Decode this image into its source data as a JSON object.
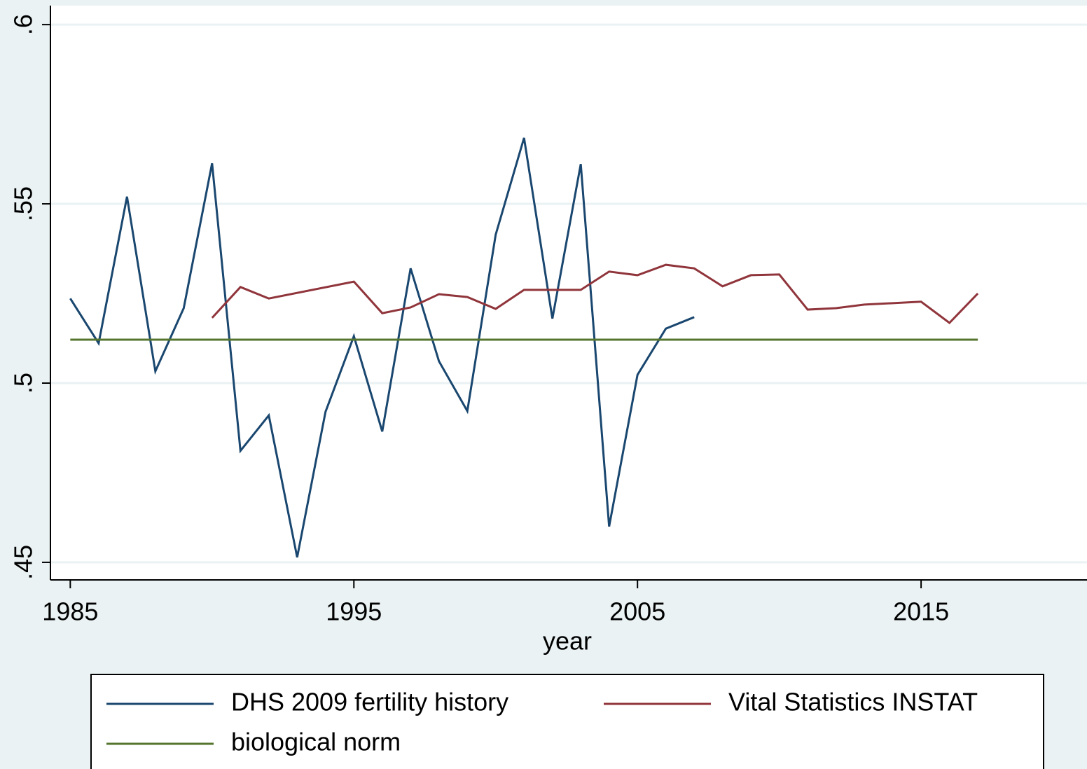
{
  "chart_data": {
    "type": "line",
    "x_label": "year",
    "xlim": [
      1984.3,
      2020.85
    ],
    "xticks": [
      1985,
      1995,
      2005,
      2015
    ],
    "ylim": [
      0.4451,
      0.6053
    ],
    "yticks": [
      {
        "value": 0.45,
        "label": ".45"
      },
      {
        "value": 0.5,
        "label": ".5"
      },
      {
        "value": 0.55,
        "label": ".55"
      },
      {
        "value": 0.6,
        "label": ".6"
      }
    ],
    "grid": true,
    "legend": "bottom",
    "series": [
      {
        "name": "DHS 2009 fertility history",
        "color": "#1a476f",
        "x": [
          1985,
          1986,
          1987,
          1988,
          1989,
          1990,
          1991,
          1992,
          1993,
          1994,
          1995,
          1996,
          1997,
          1998,
          1999,
          2000,
          2001,
          2002,
          2003,
          2004,
          2005,
          2006,
          2007
        ],
        "values": [
          0.5236,
          0.5111,
          0.552,
          0.5033,
          0.5209,
          0.5613,
          0.4811,
          0.491,
          0.4514,
          0.492,
          0.5131,
          0.4865,
          0.532,
          0.5061,
          0.4922,
          0.5414,
          0.5684,
          0.518,
          0.5611,
          0.46,
          0.5023,
          0.5152,
          0.5184
        ]
      },
      {
        "name": "Vital Statistics INSTAT",
        "color": "#90353b",
        "x": [
          1990,
          1991,
          1992,
          1995,
          1996,
          1997,
          1998,
          1999,
          2000,
          2001,
          2002,
          2003,
          2004,
          2005,
          2006,
          2007,
          2008,
          2009,
          2010,
          2011,
          2012,
          2013,
          2014,
          2015,
          2016,
          2017
        ],
        "values": [
          0.5182,
          0.5268,
          0.5236,
          0.5283,
          0.5195,
          0.5211,
          0.5248,
          0.524,
          0.5207,
          0.526,
          0.526,
          0.526,
          0.5311,
          0.5301,
          0.533,
          0.532,
          0.527,
          0.5301,
          0.5303,
          0.5205,
          0.5209,
          0.5219,
          0.5223,
          0.5227,
          0.5168,
          0.525
        ]
      },
      {
        "name": "biological norm",
        "color": "#55752f",
        "x": [
          1985,
          2017
        ],
        "values": [
          0.5121,
          0.5121
        ]
      }
    ]
  }
}
